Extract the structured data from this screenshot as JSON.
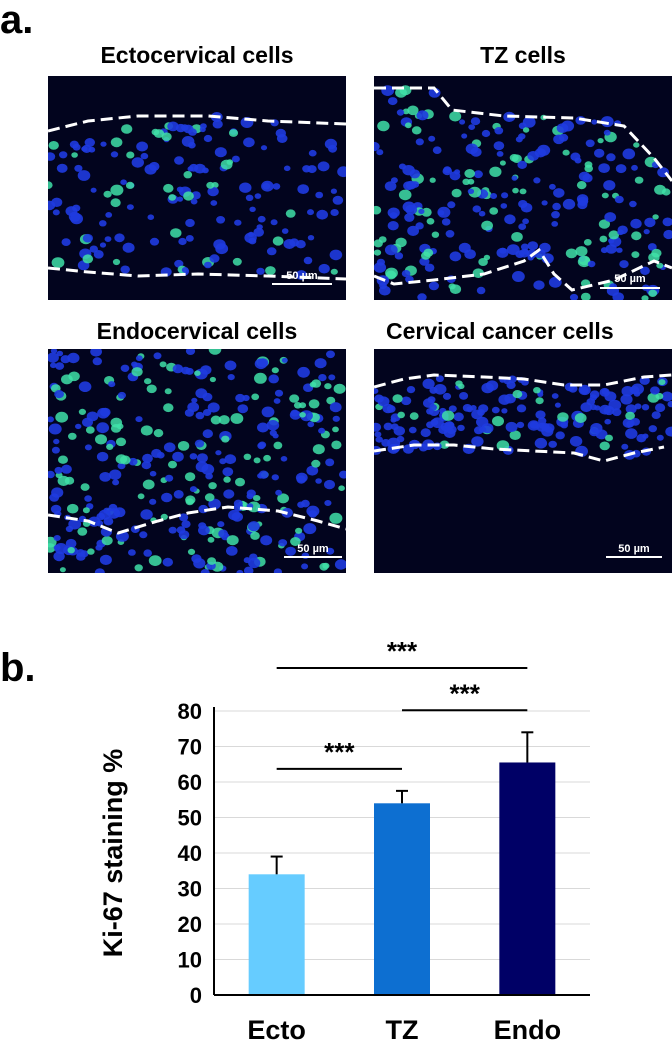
{
  "panel_a": {
    "letter": "a.",
    "images": [
      {
        "title": "Ectocervical cells",
        "scale_bar": "50 µm"
      },
      {
        "title": "TZ cells",
        "scale_bar": "50 µm"
      },
      {
        "title": "Endocervical cells",
        "scale_bar": "50 µm"
      },
      {
        "title": "Cervical cancer cells",
        "scale_bar": "50 µm"
      }
    ],
    "colors": {
      "nuclei": "#1f3be0",
      "ki67": "#3fe0a8",
      "background": "#02041e"
    }
  },
  "panel_b": {
    "letter": "b."
  },
  "chart_data": {
    "type": "bar",
    "categories": [
      "Ecto",
      "TZ",
      "Endo"
    ],
    "values": [
      34,
      54,
      65.5
    ],
    "errors": [
      5,
      3.5,
      8.5
    ],
    "ylabel": "Ki-67 staining %",
    "ylim": [
      0,
      80
    ],
    "yticks": [
      0,
      10,
      20,
      30,
      40,
      50,
      60,
      70,
      80
    ],
    "colors": [
      "#66ccff",
      "#0d6fd1",
      "#000066"
    ],
    "grid": true,
    "significance": [
      {
        "from": "Ecto",
        "to": "TZ",
        "label": "***"
      },
      {
        "from": "TZ",
        "to": "Endo",
        "label": "***"
      },
      {
        "from": "Ecto",
        "to": "Endo",
        "label": "***"
      }
    ]
  }
}
